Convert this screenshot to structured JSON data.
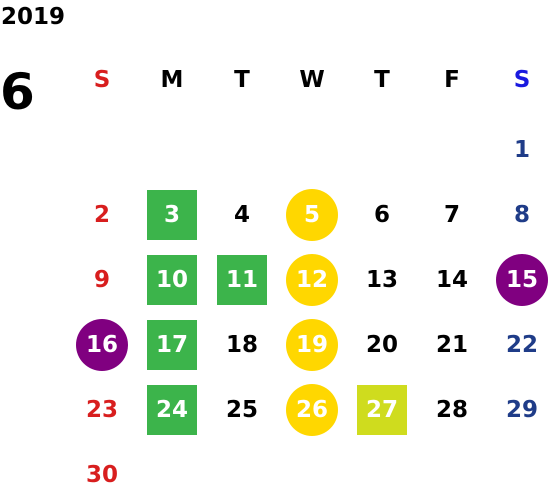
{
  "calendar": {
    "year": "2019",
    "month": "6",
    "weekdays": [
      {
        "label": "S",
        "color": "#d81e1e"
      },
      {
        "label": "M",
        "color": "#000000"
      },
      {
        "label": "T",
        "color": "#000000"
      },
      {
        "label": "W",
        "color": "#000000"
      },
      {
        "label": "T",
        "color": "#000000"
      },
      {
        "label": "F",
        "color": "#000000"
      },
      {
        "label": "S",
        "color": "#1a1adf"
      }
    ],
    "days": [
      {
        "day": "1"
      },
      {
        "day": "2"
      },
      {
        "day": "3",
        "highlight": "green"
      },
      {
        "day": "4"
      },
      {
        "day": "5",
        "highlight": "yellow-circle"
      },
      {
        "day": "6"
      },
      {
        "day": "7"
      },
      {
        "day": "8"
      },
      {
        "day": "9"
      },
      {
        "day": "10",
        "highlight": "green"
      },
      {
        "day": "11",
        "highlight": "green"
      },
      {
        "day": "12",
        "highlight": "yellow-circle"
      },
      {
        "day": "13"
      },
      {
        "day": "14"
      },
      {
        "day": "15",
        "highlight": "purple-circle"
      },
      {
        "day": "16",
        "highlight": "purple-circle"
      },
      {
        "day": "17",
        "highlight": "green"
      },
      {
        "day": "18"
      },
      {
        "day": "19",
        "highlight": "yellow-circle"
      },
      {
        "day": "20"
      },
      {
        "day": "21"
      },
      {
        "day": "22"
      },
      {
        "day": "23"
      },
      {
        "day": "24",
        "highlight": "green"
      },
      {
        "day": "25"
      },
      {
        "day": "26",
        "highlight": "yellow-circle"
      },
      {
        "day": "27",
        "highlight": "lime"
      },
      {
        "day": "28"
      },
      {
        "day": "29"
      },
      {
        "day": "30"
      }
    ],
    "colors": {
      "sunday": "#d81e1e",
      "saturday": "#1f3c88",
      "green": "#3cb44b",
      "yellow": "#ffd700",
      "lime": "#cfdc1e",
      "purple": "#800080"
    }
  }
}
